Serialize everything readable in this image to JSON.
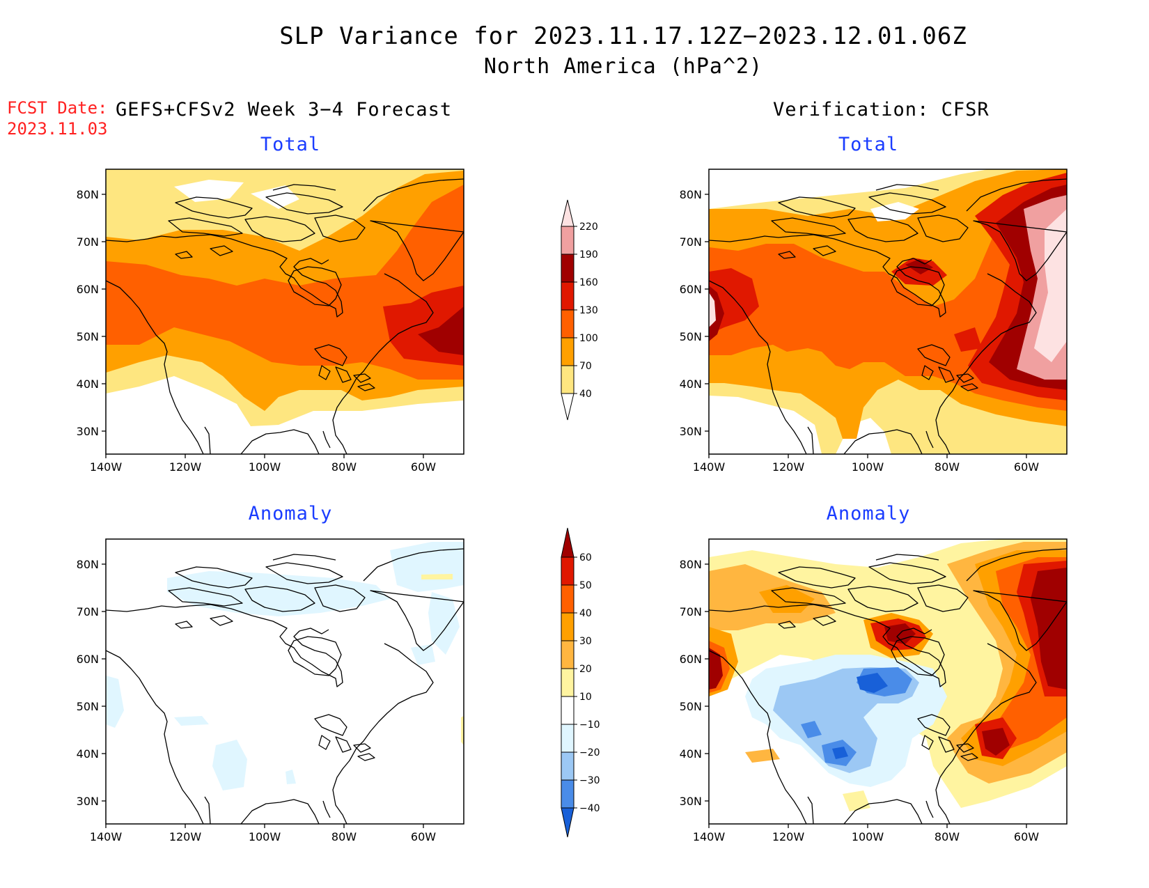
{
  "header": {
    "title_line1": "SLP Variance for 2023.11.17.12Z−2023.12.01.06Z",
    "title_line2": "North America (hPa^2)",
    "fcst_label": "FCST Date:",
    "fcst_date": "2023.11.03",
    "model_label": "GEFS+CFSv2 Week 3−4 Forecast",
    "verification_label": "Verification: CFSR"
  },
  "panels": {
    "fc_total": {
      "title": "Total"
    },
    "vf_total": {
      "title": "Total"
    },
    "fc_anom": {
      "title": "Anomaly"
    },
    "vf_anom": {
      "title": "Anomaly"
    }
  },
  "axes": {
    "lat_labels": [
      "80N",
      "70N",
      "60N",
      "50N",
      "40N",
      "30N"
    ],
    "lon_labels": [
      "140W",
      "120W",
      "100W",
      "80W",
      "60W"
    ]
  },
  "total_colorbar": {
    "levels": [
      "40",
      "70",
      "100",
      "130",
      "160",
      "190",
      "220"
    ],
    "colors": [
      "#fee680",
      "#ffa000",
      "#ff6000",
      "#e01800",
      "#a00000",
      "#f0a0a0",
      "#fde2e2"
    ]
  },
  "anomaly_colorbar": {
    "levels": [
      "60",
      "50",
      "40",
      "30",
      "20",
      "10",
      "−10",
      "−20",
      "−30",
      "−40"
    ],
    "colors": [
      "#a00000",
      "#e01800",
      "#ff6000",
      "#ffa000",
      "#ffb640",
      "#fff4a0",
      "#ffffff",
      "#e0f6ff",
      "#9cc8f4",
      "#4a8ce8",
      "#1860d8"
    ]
  }
}
